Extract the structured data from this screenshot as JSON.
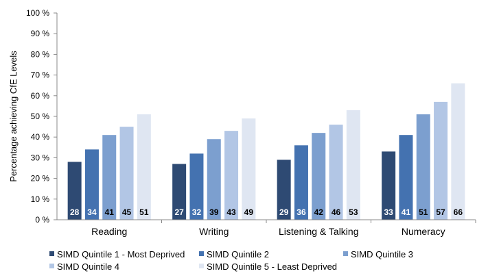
{
  "chart_data": {
    "type": "bar",
    "title": "",
    "xlabel": "",
    "ylabel": "Percentage achieving CfE Levels",
    "ylim": [
      0,
      100
    ],
    "y_ticks": [
      "0 %",
      "10 %",
      "20 %",
      "30 %",
      "40 %",
      "50 %",
      "60 %",
      "70 %",
      "80 %",
      "90 %",
      "100 %"
    ],
    "grid": false,
    "legend_position": "bottom",
    "categories": [
      "Reading",
      "Writing",
      "Listening & Talking",
      "Numeracy"
    ],
    "series": [
      {
        "name": "SIMD Quintile 1 - Most Deprived",
        "color": "#2e4a73",
        "label_color": "#ffffff",
        "values": [
          28,
          27,
          29,
          33
        ]
      },
      {
        "name": "SIMD Quintile 2",
        "color": "#4472b0",
        "label_color": "#ffffff",
        "values": [
          34,
          32,
          36,
          41
        ]
      },
      {
        "name": "SIMD Quintile 3",
        "color": "#7c9fcf",
        "label_color": "#000000",
        "values": [
          41,
          39,
          42,
          51
        ]
      },
      {
        "name": "SIMD Quintile 4",
        "color": "#b2c6e5",
        "label_color": "#000000",
        "values": [
          45,
          43,
          46,
          57
        ]
      },
      {
        "name": "SIMD Quintile 5 - Least Deprived",
        "color": "#dfe6f2",
        "label_color": "#000000",
        "values": [
          51,
          49,
          53,
          66
        ]
      }
    ]
  }
}
